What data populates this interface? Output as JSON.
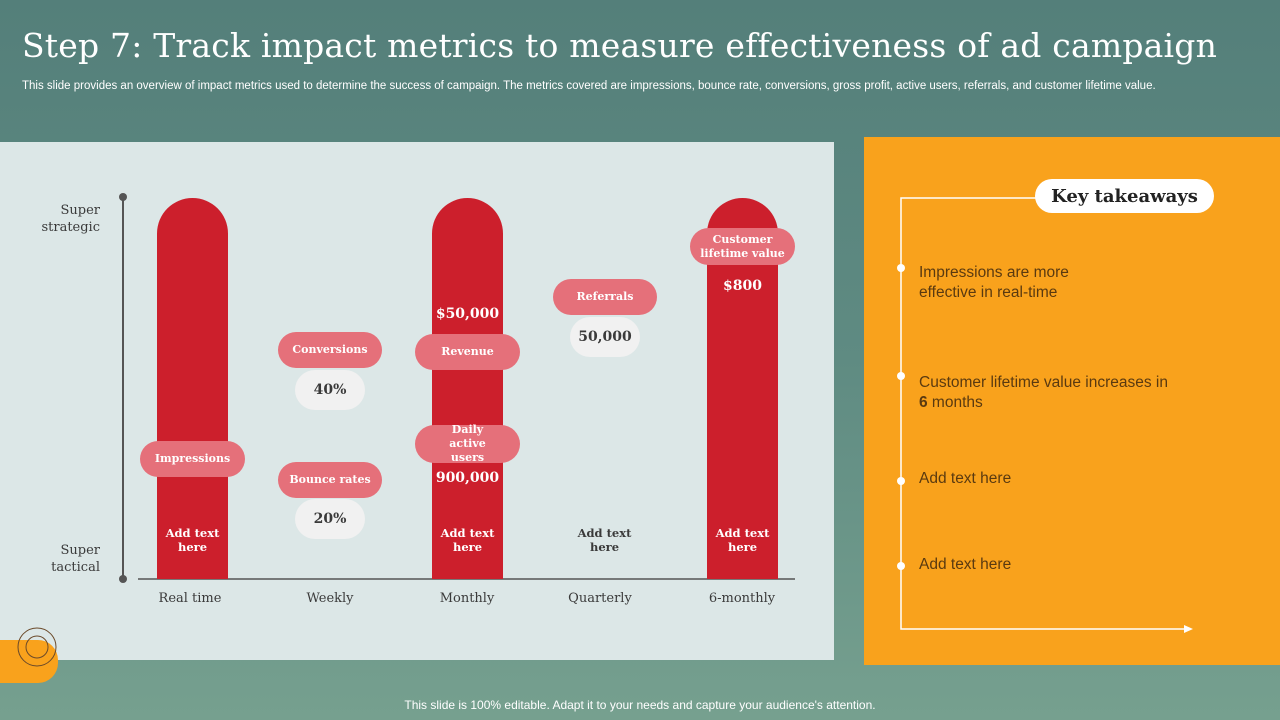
{
  "title": "Step 7: Track impact metrics to measure effectiveness of ad campaign",
  "subtitle": "This slide provides an overview of impact metrics used to determine the success of campaign. The metrics covered are impressions, bounce rate, conversions, gross profit, active users, referrals, and customer lifetime value.",
  "colors": {
    "bar": "#cc1f2c",
    "metric_pill": "#e5707a",
    "value_pill": "#f1f1f1",
    "takeaway_panel": "#f9a21c",
    "chart_panel": "#dce7e7"
  },
  "chart": {
    "y_axis": {
      "top": "Super strategic",
      "bottom": "Super tactical"
    },
    "x_labels": [
      "Real time",
      "Weekly",
      "Monthly",
      "Quarterly",
      "6-monthly"
    ],
    "real_time": {
      "metric": "Impressions",
      "note": "Add text here"
    },
    "weekly": {
      "metric1": "Conversions",
      "value1": "40%",
      "metric2": "Bounce rates",
      "value2": "20%"
    },
    "monthly": {
      "value1": "$50,000",
      "metric1": "Revenue",
      "metric2": "Daily active users",
      "value2": "900,000",
      "note": "Add text here"
    },
    "quarterly": {
      "metric": "Referrals",
      "value": "50,000",
      "note": "Add text here"
    },
    "six_monthly": {
      "metric": "Customer lifetime value",
      "value": "$800",
      "note": "Add text here"
    }
  },
  "takeaways": {
    "title": "Key takeaways",
    "items": [
      "Impressions are more effective in real-time",
      "Add text here",
      "Add text here"
    ],
    "item2_pre": "Customer lifetime value increases in ",
    "item2_bold": "6",
    "item2_post": " months"
  },
  "footer": "This slide is 100% editable. Adapt it to your needs and capture your audience's attention."
}
